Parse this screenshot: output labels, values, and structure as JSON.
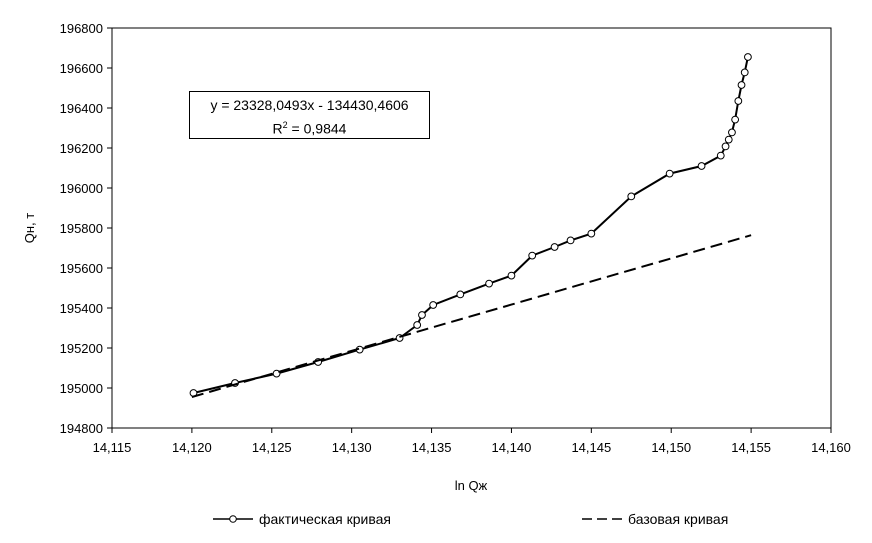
{
  "chart_data": {
    "type": "line",
    "xlabel": "ln Qж",
    "ylabel": "Qн, т",
    "xlim": [
      14.115,
      14.16
    ],
    "ylim": [
      194800,
      196800
    ],
    "x_ticks": [
      "14,115",
      "14,120",
      "14,125",
      "14,130",
      "14,135",
      "14,140",
      "14,145",
      "14,150",
      "14,155",
      "14,160"
    ],
    "y_ticks": [
      "194800",
      "195000",
      "195200",
      "195400",
      "195600",
      "195800",
      "196000",
      "196200",
      "196400",
      "196600",
      "196800"
    ],
    "grid": false,
    "legend_position": "bottom",
    "series": [
      {
        "name": "фактическая кривая",
        "style": "solid-line-with-circle-markers",
        "color": "#000000",
        "points": [
          [
            14.1201,
            194975
          ],
          [
            14.1227,
            195025
          ],
          [
            14.1253,
            195072
          ],
          [
            14.1279,
            195130
          ],
          [
            14.1305,
            195192
          ],
          [
            14.133,
            195250
          ],
          [
            14.1341,
            195315
          ],
          [
            14.1344,
            195365
          ],
          [
            14.1351,
            195415
          ],
          [
            14.1368,
            195468
          ],
          [
            14.1386,
            195522
          ],
          [
            14.14,
            195562
          ],
          [
            14.1413,
            195662
          ],
          [
            14.1427,
            195705
          ],
          [
            14.1437,
            195738
          ],
          [
            14.145,
            195772
          ],
          [
            14.1475,
            195958
          ],
          [
            14.1499,
            196072
          ],
          [
            14.1519,
            196110
          ],
          [
            14.1531,
            196162
          ],
          [
            14.1534,
            196208
          ],
          [
            14.1536,
            196242
          ],
          [
            14.1538,
            196278
          ],
          [
            14.154,
            196342
          ],
          [
            14.1542,
            196435
          ],
          [
            14.1544,
            196515
          ],
          [
            14.1546,
            196578
          ],
          [
            14.1548,
            196655
          ]
        ]
      },
      {
        "name": "базовая кривая",
        "style": "dashed-line",
        "color": "#000000",
        "points": [
          [
            14.12,
            194955
          ],
          [
            14.125,
            195071
          ],
          [
            14.13,
            195186
          ],
          [
            14.135,
            195302
          ],
          [
            14.14,
            195417
          ],
          [
            14.145,
            195533
          ],
          [
            14.15,
            195648
          ],
          [
            14.155,
            195764
          ]
        ]
      }
    ],
    "annotation": {
      "equation": "y = 23328,0493x - 134430,4606",
      "r2_prefix": "R",
      "r2_sup": "2",
      "r2_value": " = 0,9844"
    }
  }
}
